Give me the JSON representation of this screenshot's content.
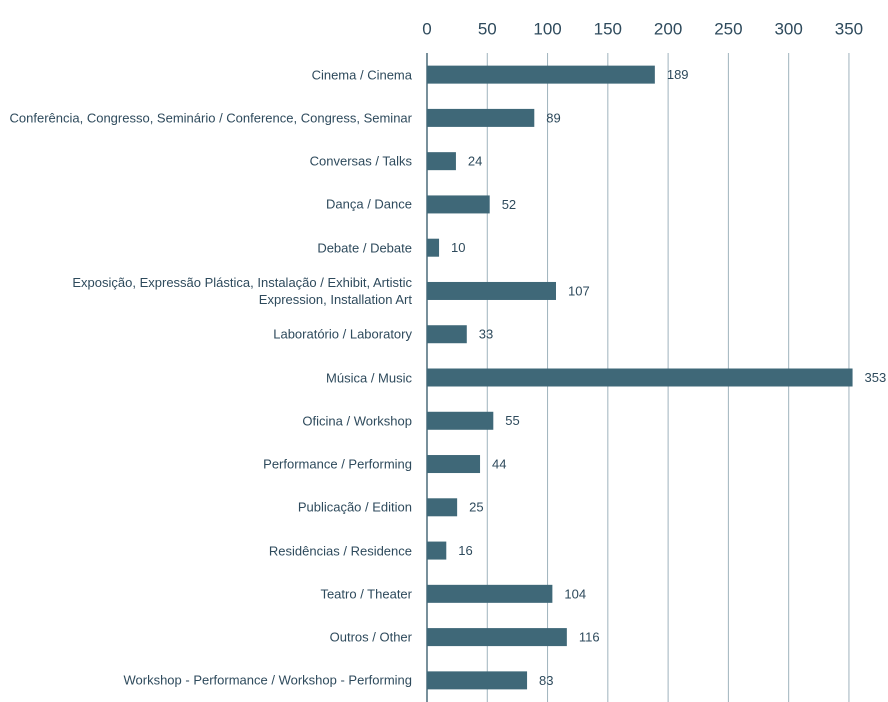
{
  "chart_data": {
    "type": "barh",
    "categories": [
      "Cinema / Cinema",
      "Conferência, Congresso, Seminário / Conference, Congress, Seminar",
      "Conversas / Talks",
      "Dança / Dance",
      "Debate / Debate",
      "Exposição, Expressão Plástica, Instalação / Exhibit, Artistic Expression, Installation Art",
      "Laboratório / Laboratory",
      "Música / Music",
      "Oficina / Workshop",
      "Performance / Performing",
      "Publicação / Edition",
      "Residências / Residence",
      "Teatro / Theater",
      "Outros / Other",
      "Workshop - Performance / Workshop - Performing"
    ],
    "values": [
      189,
      89,
      24,
      52,
      10,
      107,
      33,
      353,
      55,
      44,
      25,
      16,
      104,
      116,
      83
    ],
    "color": "#3f6878",
    "xlim": [
      0,
      360
    ],
    "xticks": [
      0,
      50,
      100,
      150,
      200,
      250,
      300,
      350
    ],
    "grid": true
  }
}
